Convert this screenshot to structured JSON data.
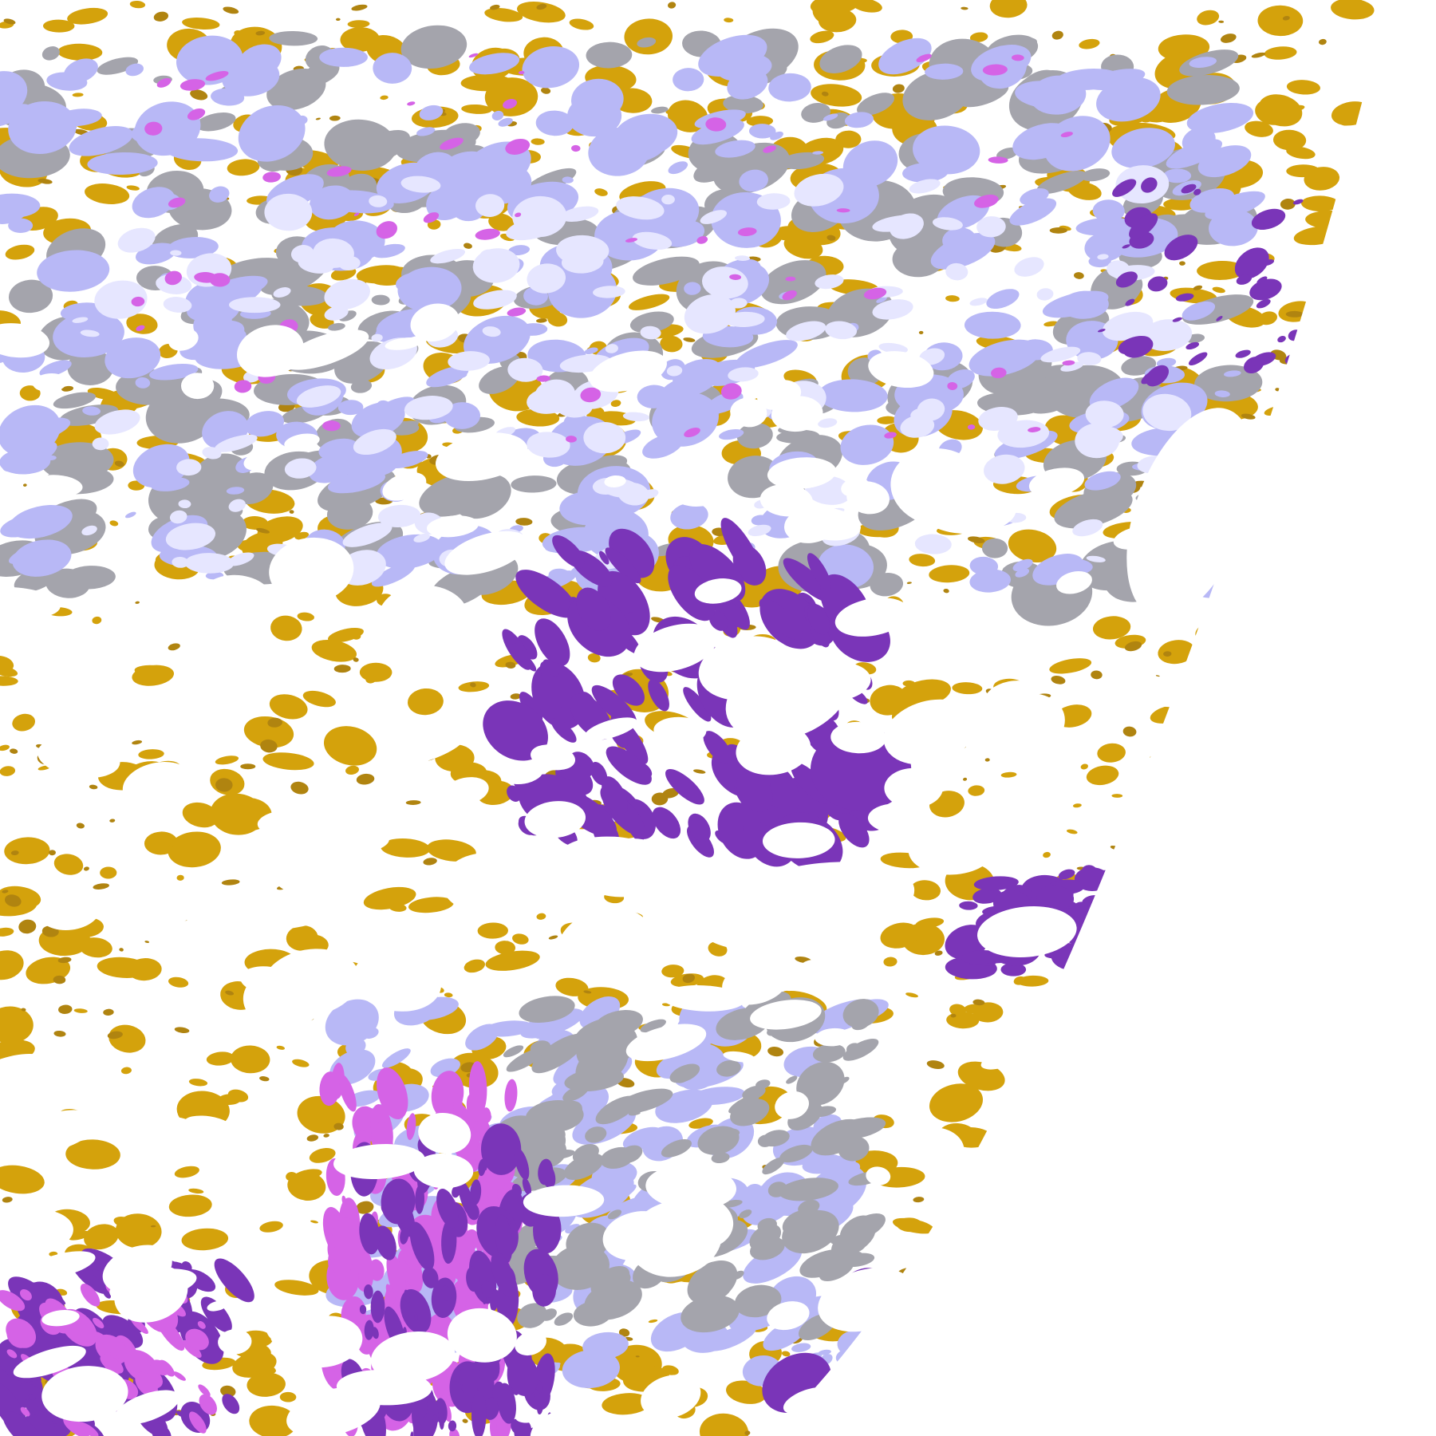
{
  "image": {
    "kind": "satellite cloud classification",
    "colors": {
      "background": "#ffffff",
      "gold": "#d4a20c",
      "dark_gold": "#b08410",
      "purple": "#7a35b8",
      "magenta": "#d563e6",
      "lavender": "#b8b8f6",
      "pale_lavender": "#e6e6ff",
      "gray": "#a4a4ac"
    }
  }
}
